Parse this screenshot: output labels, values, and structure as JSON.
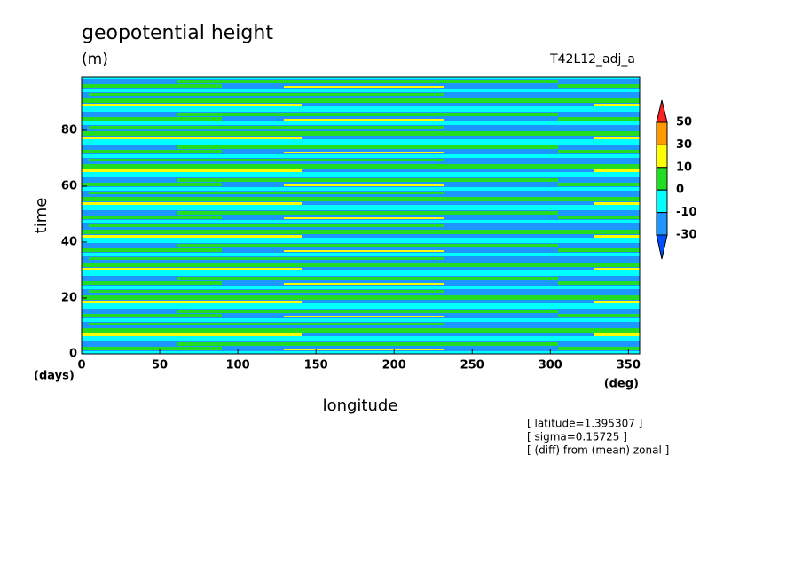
{
  "chart_data": {
    "type": "contour",
    "title": "geopotential height",
    "units": "(m)",
    "run": "T42L12_adj_a",
    "xlabel": "longitude",
    "ylabel": "time",
    "xunit": "(deg)",
    "yunit": "(days)",
    "annotations": [
      "[ latitude=1.395307 ]",
      "[ sigma=0.15725 ]",
      "[ (diff) from (mean) zonal ]"
    ],
    "xlim": [
      0,
      357.1875
    ],
    "ylim": [
      0,
      99
    ],
    "xticks": [
      0,
      50,
      100,
      150,
      200,
      250,
      300,
      350
    ],
    "yticks": [
      0,
      20,
      40,
      60,
      80
    ],
    "levels": [
      -30,
      -10,
      0,
      10,
      30,
      50
    ],
    "level_colors": [
      "#0050ff",
      "#1e96ff",
      "#00ffff",
      "#22dd22",
      "#ffff00",
      "#ff9900",
      "#ff2020"
    ]
  }
}
